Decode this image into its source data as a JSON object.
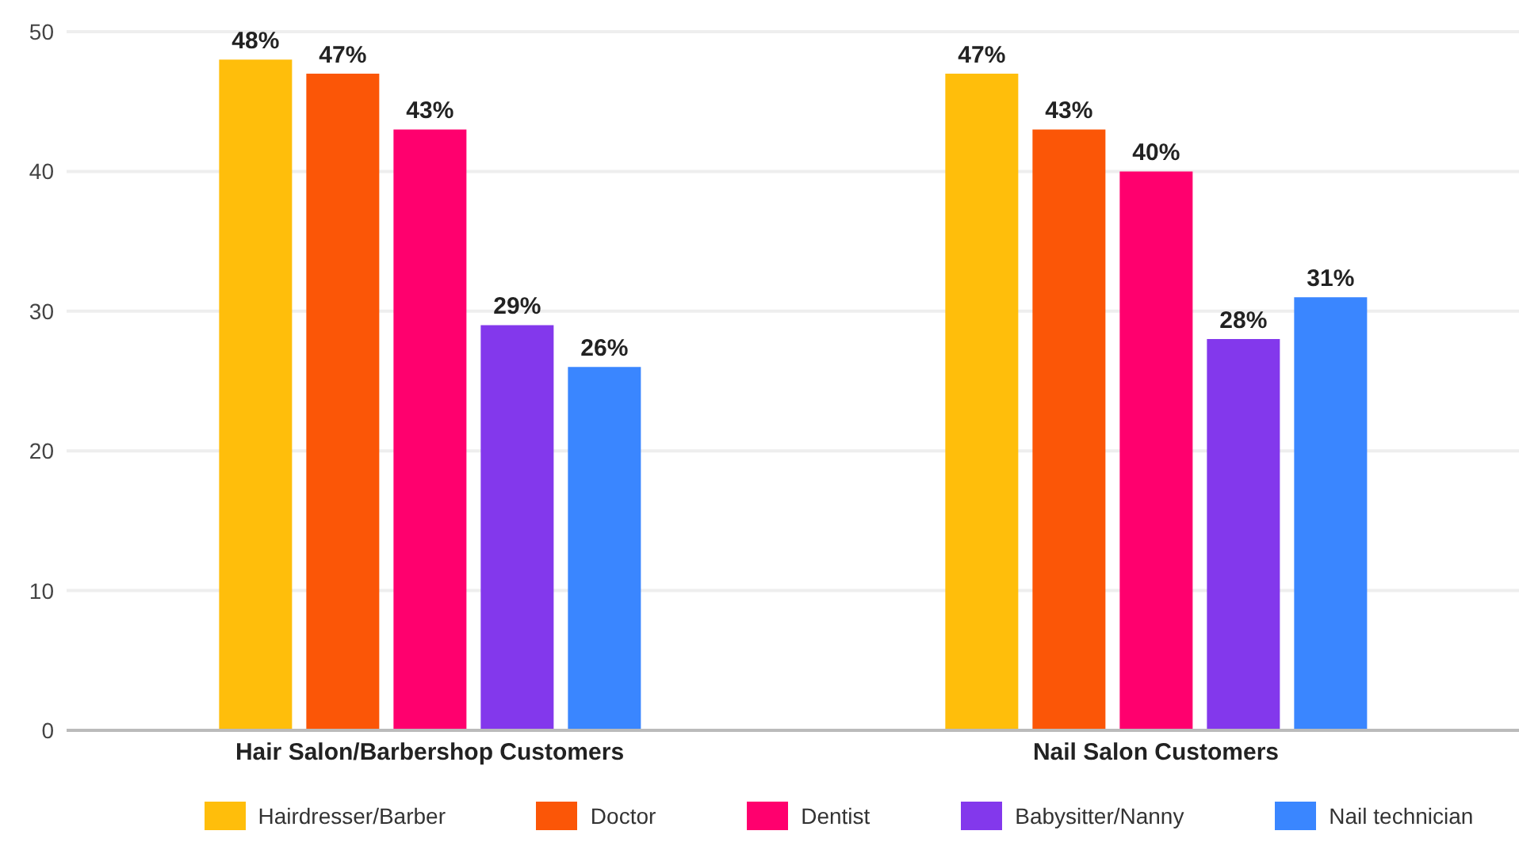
{
  "chart_data": {
    "type": "bar",
    "categories": [
      "Hair Salon/Barbershop Customers",
      "Nail Salon Customers"
    ],
    "series": [
      {
        "name": "Hairdresser/Barber",
        "color": "#ffbe0b",
        "values": [
          48,
          47
        ],
        "value_labels": [
          "48%",
          "47%"
        ]
      },
      {
        "name": "Doctor",
        "color": "#fb5607",
        "values": [
          47,
          43
        ],
        "value_labels": [
          "47%",
          "43%"
        ]
      },
      {
        "name": "Dentist",
        "color": "#ff006e",
        "values": [
          43,
          40
        ],
        "value_labels": [
          "43%",
          "40%"
        ]
      },
      {
        "name": "Babysitter/Nanny",
        "color": "#8338ec",
        "values": [
          29,
          28
        ],
        "value_labels": [
          "29%",
          "28%"
        ]
      },
      {
        "name": "Nail technician",
        "color": "#3a86ff",
        "values": [
          26,
          31
        ],
        "value_labels": [
          "26%",
          "31%"
        ]
      }
    ],
    "ylim": [
      0,
      50
    ],
    "yticks": [
      0,
      10,
      20,
      30,
      40,
      50
    ],
    "grid": "y",
    "legend": "bottom"
  }
}
